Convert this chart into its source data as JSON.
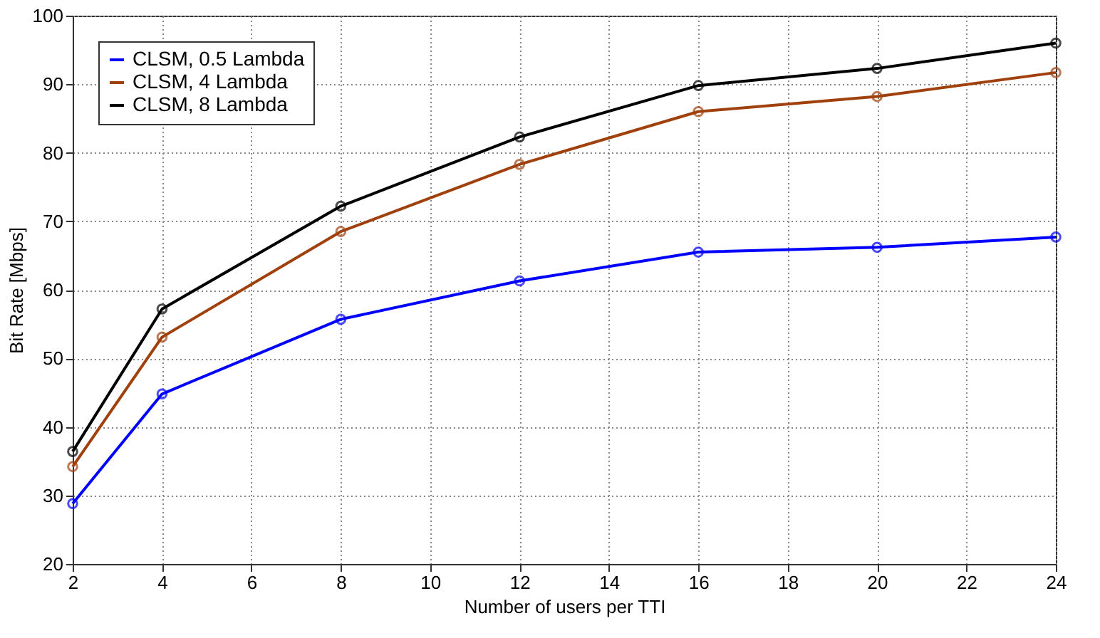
{
  "chart_data": {
    "type": "line",
    "xlabel": "Number of users per TTI",
    "ylabel": "Bit Rate [Mbps]",
    "x": [
      2,
      4,
      8,
      12,
      16,
      20,
      24
    ],
    "series": [
      {
        "name": "CLSM, 0.5 Lambda",
        "color": "#0000ff",
        "values": [
          28.8,
          44.8,
          55.7,
          61.3,
          65.5,
          66.2,
          67.7
        ]
      },
      {
        "name": "CLSM, 4 Lambda",
        "color": "#a0410d",
        "values": [
          34.2,
          53.1,
          68.5,
          78.3,
          86.0,
          88.2,
          91.7
        ]
      },
      {
        "name": "CLSM, 8 Lambda",
        "color": "#000000",
        "values": [
          36.4,
          57.2,
          72.2,
          82.3,
          89.8,
          92.3,
          96.0
        ]
      }
    ],
    "xlim": [
      2,
      24
    ],
    "xticks": [
      2,
      4,
      6,
      8,
      10,
      12,
      14,
      16,
      18,
      20,
      22,
      24
    ],
    "ylim": [
      20,
      100
    ],
    "yticks": [
      20,
      30,
      40,
      50,
      60,
      70,
      80,
      90,
      100
    ],
    "grid": true,
    "legend": "top left",
    "marker": "circle",
    "line_style": "solid"
  }
}
